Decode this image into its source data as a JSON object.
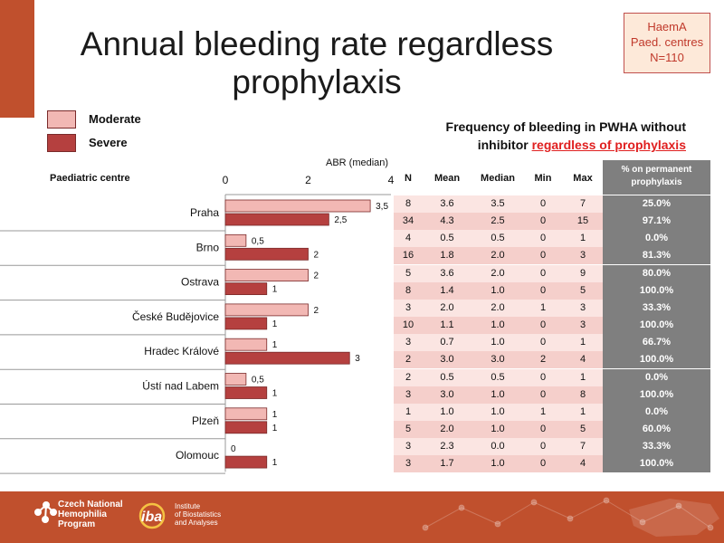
{
  "page": {
    "title_line1": "Annual bleeding rate regardless",
    "title_line2": "prophylaxis",
    "info_box": [
      "HaemA",
      "Paed. centres",
      "N=110"
    ],
    "subtitle_line1": "Frequency of bleeding in PWHA without",
    "subtitle_line2_plain": "inhibitor ",
    "subtitle_line2_highlight": "regardless of prophylaxis",
    "footer_org1": [
      "Czech National",
      "Hemophilia",
      "Program"
    ],
    "footer_org2": [
      "Institute",
      "of Biostatistics",
      "and Analyses"
    ],
    "footer_org2_abbrev": "iba"
  },
  "table": {
    "headers": {
      "centre": "Paediatric centre",
      "n": "N",
      "mean": "Mean",
      "median": "Median",
      "min": "Min",
      "max": "Max",
      "pct_line1": "% on permanent",
      "pct_line2": "prophylaxis"
    },
    "rows": [
      {
        "n": "8",
        "mean": "3.6",
        "median": "3.5",
        "min": "0",
        "max": "7",
        "pct": "25.0%"
      },
      {
        "n": "34",
        "mean": "4.3",
        "median": "2.5",
        "min": "0",
        "max": "15",
        "pct": "97.1%"
      },
      {
        "n": "4",
        "mean": "0.5",
        "median": "0.5",
        "min": "0",
        "max": "1",
        "pct": "0.0%"
      },
      {
        "n": "16",
        "mean": "1.8",
        "median": "2.0",
        "min": "0",
        "max": "3",
        "pct": "81.3%"
      },
      {
        "n": "5",
        "mean": "3.6",
        "median": "2.0",
        "min": "0",
        "max": "9",
        "pct": "80.0%"
      },
      {
        "n": "8",
        "mean": "1.4",
        "median": "1.0",
        "min": "0",
        "max": "5",
        "pct": "100.0%"
      },
      {
        "n": "3",
        "mean": "2.0",
        "median": "2.0",
        "min": "1",
        "max": "3",
        "pct": "33.3%"
      },
      {
        "n": "10",
        "mean": "1.1",
        "median": "1.0",
        "min": "0",
        "max": "3",
        "pct": "100.0%"
      },
      {
        "n": "3",
        "mean": "0.7",
        "median": "1.0",
        "min": "0",
        "max": "1",
        "pct": "66.7%"
      },
      {
        "n": "2",
        "mean": "3.0",
        "median": "3.0",
        "min": "2",
        "max": "4",
        "pct": "100.0%"
      },
      {
        "n": "2",
        "mean": "0.5",
        "median": "0.5",
        "min": "0",
        "max": "1",
        "pct": "0.0%"
      },
      {
        "n": "3",
        "mean": "3.0",
        "median": "1.0",
        "min": "0",
        "max": "8",
        "pct": "100.0%"
      },
      {
        "n": "1",
        "mean": "1.0",
        "median": "1.0",
        "min": "1",
        "max": "1",
        "pct": "0.0%"
      },
      {
        "n": "5",
        "mean": "2.0",
        "median": "1.0",
        "min": "0",
        "max": "5",
        "pct": "60.0%"
      },
      {
        "n": "3",
        "mean": "2.3",
        "median": "0.0",
        "min": "0",
        "max": "7",
        "pct": "33.3%"
      },
      {
        "n": "3",
        "mean": "1.7",
        "median": "1.0",
        "min": "0",
        "max": "4",
        "pct": "100.0%"
      }
    ]
  },
  "chart_data": {
    "type": "bar",
    "orientation": "horizontal",
    "xlabel": "ABR (median)",
    "ylabel": "Paediatric centre",
    "xlim": [
      0,
      4
    ],
    "xticks": [
      "0",
      "2",
      "4"
    ],
    "categories": [
      "Praha",
      "Brno",
      "Ostrava",
      "České Budějovice",
      "Hradec Králové",
      "Ústí nad Labem",
      "Plzeň",
      "Olomouc"
    ],
    "series": [
      {
        "name": "Moderate",
        "color": "#f2b8b4",
        "values": [
          3.5,
          0.5,
          2,
          2,
          1,
          0.5,
          1,
          0
        ],
        "labels": [
          "3,5",
          "0,5",
          "2",
          "2",
          "1",
          "0,5",
          "1",
          "0"
        ]
      },
      {
        "name": "Severe",
        "color": "#b5403f",
        "values": [
          2.5,
          2,
          1,
          1,
          3,
          1,
          1,
          1
        ],
        "labels": [
          "2,5",
          "2",
          "1",
          "1",
          "3",
          "1",
          "1",
          "1"
        ]
      }
    ],
    "legend": "top-left",
    "grid": false
  }
}
